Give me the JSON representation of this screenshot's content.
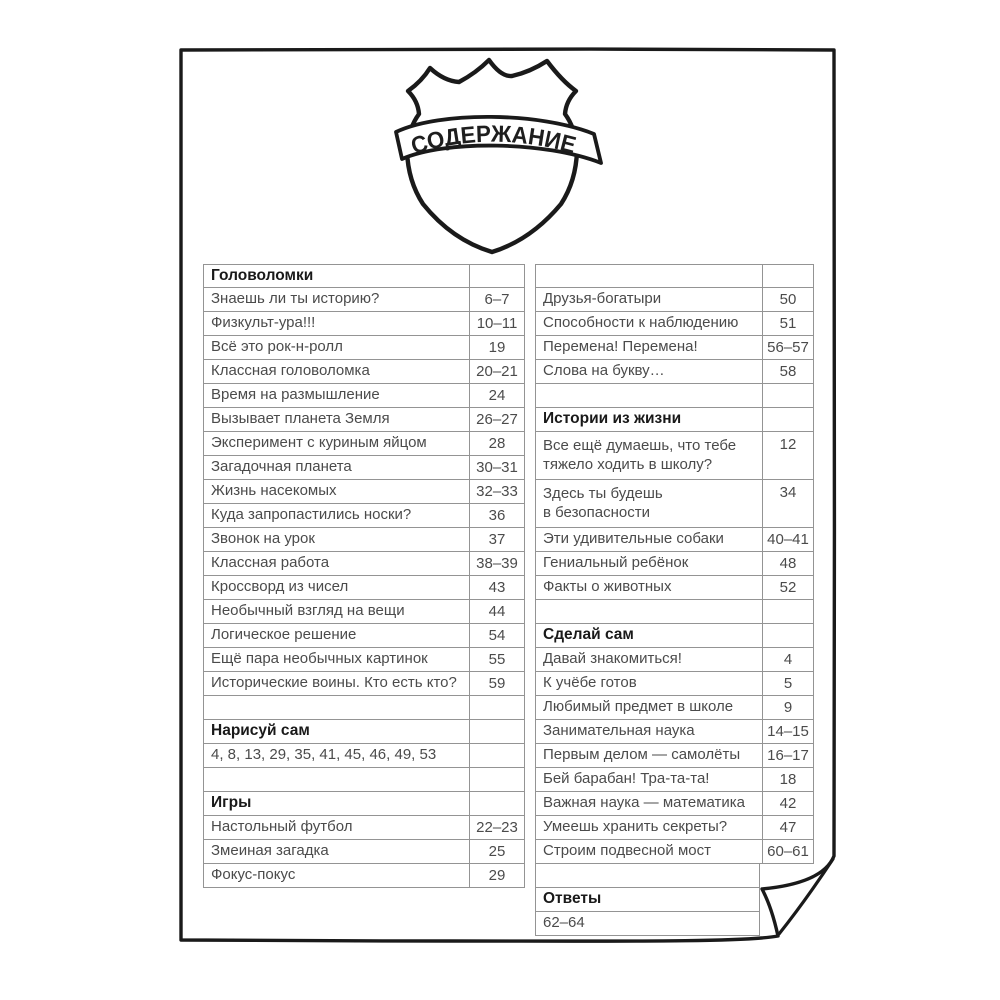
{
  "badge": {
    "title": "СОДЕРЖАНИЕ"
  },
  "decor": {
    "ink_color": "#1a1a1a",
    "grid_color": "#949494",
    "text_color": "#4b4b4b",
    "corner_fold": "bottom-right"
  },
  "contents": {
    "left_column": {
      "rows": [
        {
          "label": "Головоломки",
          "bold": true
        },
        {
          "label": "Знаешь ли ты историю?",
          "pages": "6–7"
        },
        {
          "label": "Физкульт-ура!!!",
          "pages": "10–11"
        },
        {
          "label": "Всё это рок-н-ролл",
          "pages": "19"
        },
        {
          "label": "Классная головоломка",
          "pages": "20–21"
        },
        {
          "label": "Время на размышление",
          "pages": "24"
        },
        {
          "label": "Вызывает планета Земля",
          "pages": "26–27"
        },
        {
          "label": "Эксперимент с куриным яйцом",
          "pages": "28"
        },
        {
          "label": "Загадочная планета",
          "pages": "30–31"
        },
        {
          "label": "Жизнь насекомых",
          "pages": "32–33"
        },
        {
          "label": "Куда запропастились носки?",
          "pages": "36"
        },
        {
          "label": "Звонок на урок",
          "pages": "37"
        },
        {
          "label": "Классная работа",
          "pages": "38–39"
        },
        {
          "label": "Кроссворд из чисел",
          "pages": "43"
        },
        {
          "label": "Необычный взгляд на вещи",
          "pages": "44"
        },
        {
          "label": "Логическое решение",
          "pages": "54"
        },
        {
          "label": "Ещё пара необычных картинок",
          "pages": "55"
        },
        {
          "label": "Исторические воины. Кто есть кто?",
          "pages": "59"
        },
        {
          "label": ""
        },
        {
          "label": "Нарисуй сам",
          "bold": true
        },
        {
          "label": "4, 8, 13, 29, 35, 41, 45, 46, 49, 53"
        },
        {
          "label": ""
        },
        {
          "label": "Игры",
          "bold": true
        },
        {
          "label": "Настольный футбол",
          "pages": "22–23"
        },
        {
          "label": "Змеиная загадка",
          "pages": "25"
        },
        {
          "label": "Фокус-покус",
          "pages": "29"
        }
      ]
    },
    "right_column": {
      "rows": [
        {
          "label": ""
        },
        {
          "label": "Друзья-богатыри",
          "pages": "50"
        },
        {
          "label": "Способности к наблюдению",
          "pages": "51"
        },
        {
          "label": "Перемена! Перемена!",
          "pages": "56–57"
        },
        {
          "label": "Слова на букву…",
          "pages": "58"
        },
        {
          "label": ""
        },
        {
          "label": "Истории из жизни",
          "bold": true
        },
        {
          "label": "Все ещё думаешь, что тебе\nтяжело ходить в школу?",
          "pages": "12",
          "tall": true
        },
        {
          "label": "Здесь ты будешь\nв безопасности",
          "pages": "34",
          "tall": true
        },
        {
          "label": "Эти удивительные собаки",
          "pages": "40–41"
        },
        {
          "label": "Гениальный ребёнок",
          "pages": "48"
        },
        {
          "label": "Факты о животных",
          "pages": "52"
        },
        {
          "label": ""
        },
        {
          "label": "Сделай сам",
          "bold": true
        },
        {
          "label": "Давай знакомиться!",
          "pages": "4"
        },
        {
          "label": "К учёбе готов",
          "pages": "5"
        },
        {
          "label": "Любимый предмет в школе",
          "pages": "9"
        },
        {
          "label": "Занимательная наука",
          "pages": "14–15"
        },
        {
          "label": "Первым делом — самолёты",
          "pages": "16–17"
        },
        {
          "label": "Бей барабан! Тра-та-та!",
          "pages": "18"
        },
        {
          "label": "Важная наука — математика",
          "pages": "42"
        },
        {
          "label": "Умеешь хранить секреты?",
          "pages": "47"
        },
        {
          "label": "Строим подвесной мост",
          "pages": "60–61"
        },
        {
          "label": "",
          "short": true
        },
        {
          "label": "Ответы",
          "bold": true,
          "short": true
        },
        {
          "label": "62–64",
          "short": true
        }
      ]
    }
  }
}
